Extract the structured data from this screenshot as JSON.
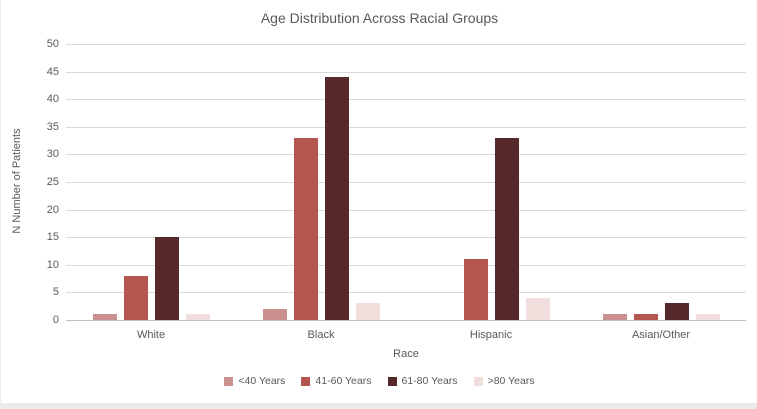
{
  "chart_data": {
    "type": "bar",
    "title": "Age Distribution Across Racial Groups",
    "xlabel": "Race",
    "ylabel": "N Number of Patients",
    "categories": [
      "White",
      "Black",
      "Hispanic",
      "Asian/Other"
    ],
    "series": [
      {
        "name": "<40 Years",
        "color": "#C9908E",
        "values": [
          1,
          2,
          0,
          1
        ]
      },
      {
        "name": "41-60 Years",
        "color": "#B4554F",
        "values": [
          8,
          33,
          11,
          1
        ]
      },
      {
        "name": "61-80 Years",
        "color": "#552829",
        "values": [
          15,
          44,
          33,
          3
        ]
      },
      {
        "name": ">80 Years",
        "color": "#F2DEDC",
        "values": [
          1,
          3,
          4,
          1
        ]
      }
    ],
    "ylim": [
      0,
      50
    ],
    "ytick_step": 5,
    "yticks": [
      0,
      5,
      10,
      15,
      20,
      25,
      30,
      35,
      40,
      45,
      50
    ],
    "grid": true,
    "legend_position": "bottom",
    "colors": {
      "gridline": "#d9d9d9",
      "axis_line": "#bfbfbf",
      "text": "#595959",
      "background": "#ffffff"
    }
  }
}
